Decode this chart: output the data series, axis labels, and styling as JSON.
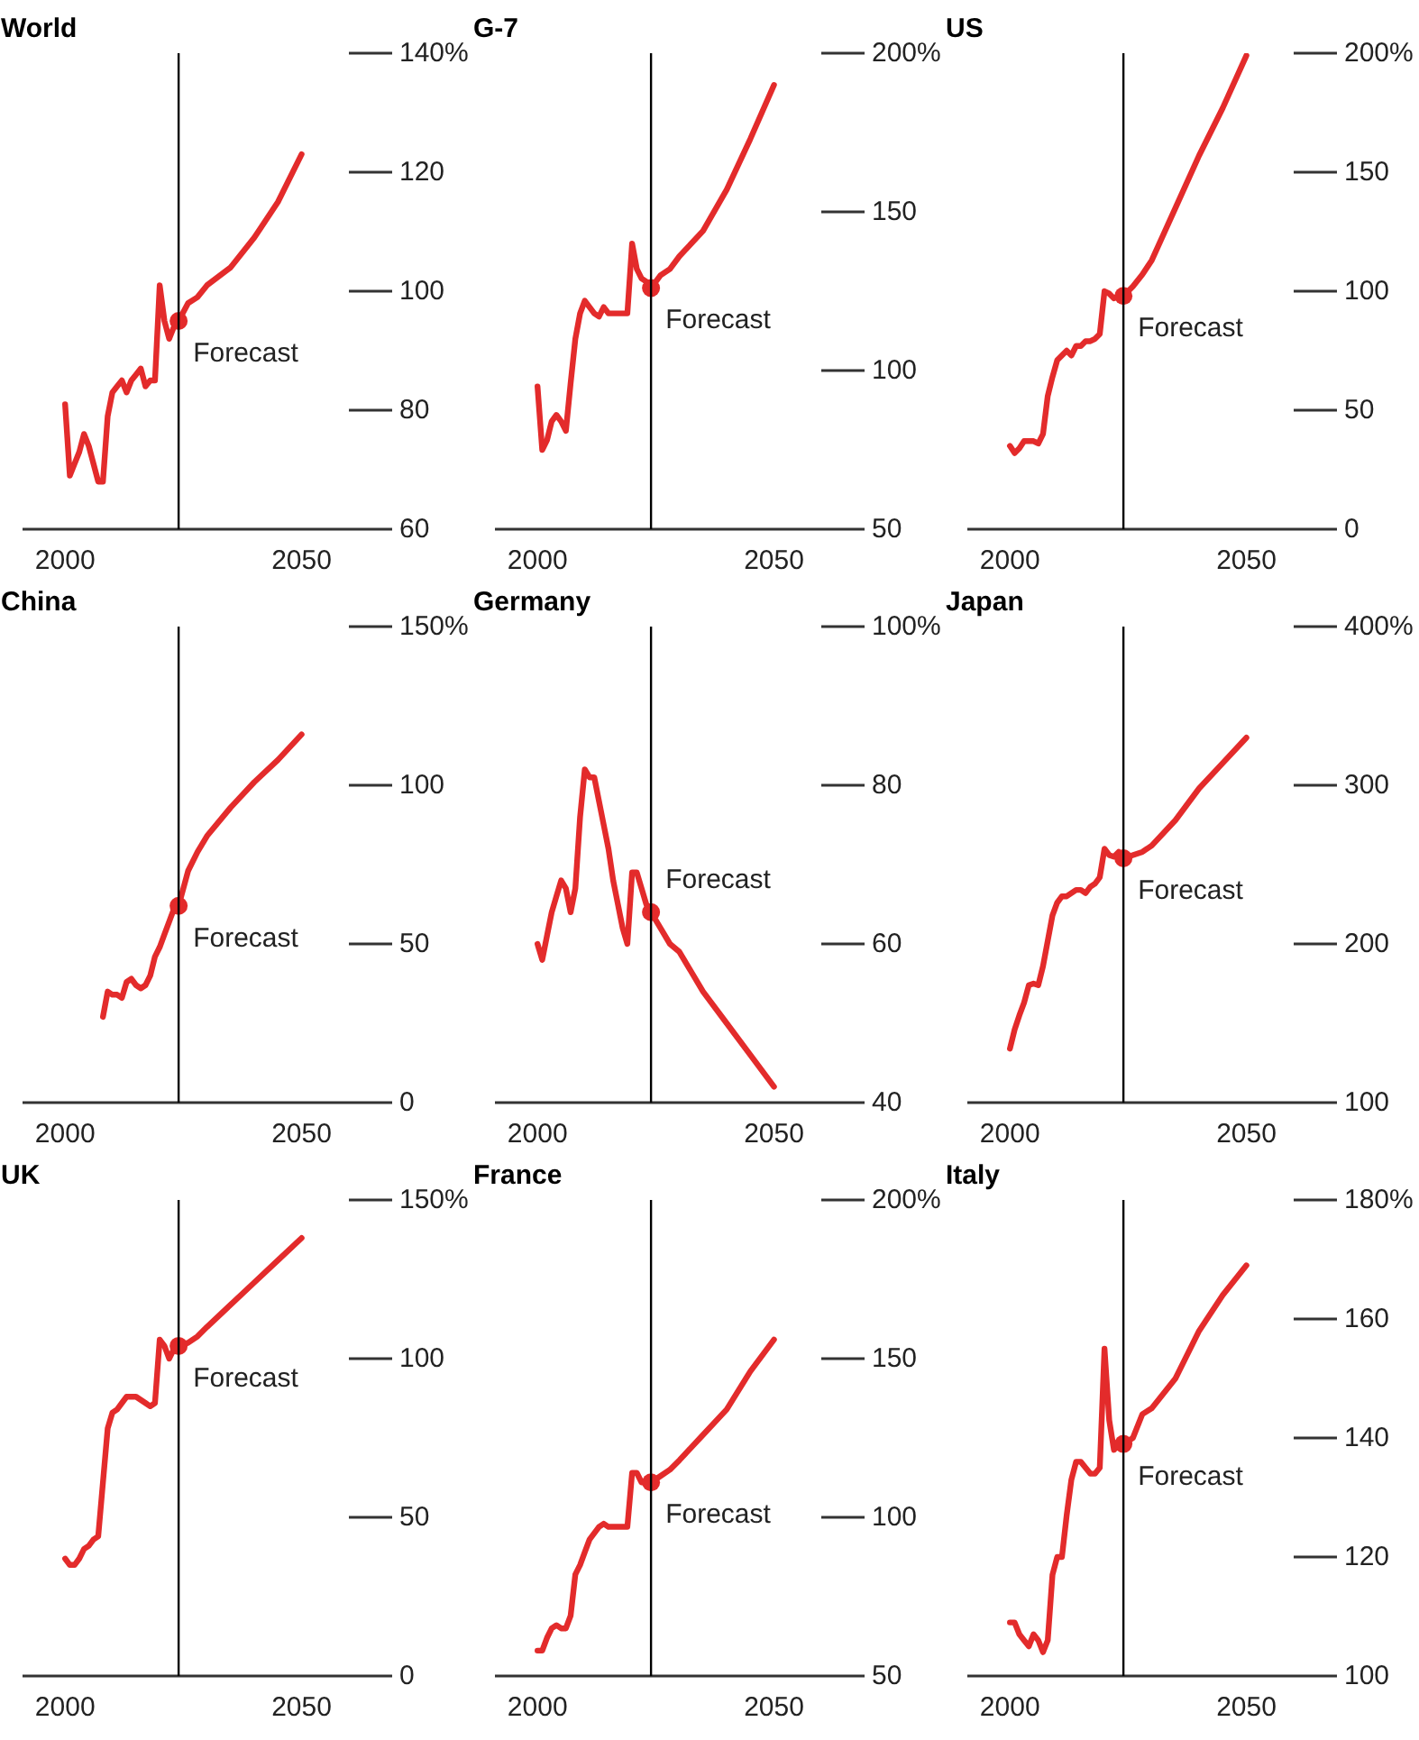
{
  "chart_data": [
    {
      "type": "line",
      "title": "World",
      "xlim": [
        1991,
        2060
      ],
      "xticks": [
        2000,
        2050
      ],
      "ylim": [
        60,
        140
      ],
      "yticks": [
        60,
        80,
        100,
        120,
        {
          "value": 140,
          "label": "140%"
        }
      ],
      "series": [
        {
          "color": "#e32b2b",
          "x": [
            2000,
            2001,
            2002,
            2003,
            2004,
            2005,
            2006,
            2007,
            2008,
            2009,
            2010,
            2011,
            2012,
            2013,
            2014,
            2015,
            2016,
            2017,
            2018,
            2019,
            2020,
            2021,
            2022,
            2023,
            2024,
            2026,
            2028,
            2030,
            2035,
            2040,
            2045,
            2050
          ],
          "values": [
            81,
            69,
            71,
            73,
            76,
            74,
            71,
            68,
            68,
            79,
            83,
            84,
            85,
            83,
            85,
            86,
            87,
            84,
            85,
            85,
            101,
            95,
            92,
            94,
            95,
            98,
            99,
            101,
            104,
            109,
            115,
            123
          ]
        },
        {
          "type": "scatter",
          "color": "#e32b2b",
          "x": [
            2024
          ],
          "values": [
            95
          ]
        }
      ],
      "ref_lines": [
        {
          "axis": "x",
          "value": 2024,
          "color": "#000000",
          "label": "Forecast"
        }
      ]
    },
    {
      "type": "line",
      "title": "G-7",
      "xlim": [
        1991,
        2060
      ],
      "xticks": [
        2000,
        2050
      ],
      "ylim": [
        50,
        200
      ],
      "yticks": [
        50,
        100,
        150,
        {
          "value": 200,
          "label": "200%"
        }
      ],
      "series": [
        {
          "color": "#e32b2b",
          "x": [
            2000,
            2001,
            2002,
            2003,
            2004,
            2005,
            2006,
            2007,
            2008,
            2009,
            2010,
            2011,
            2012,
            2013,
            2014,
            2015,
            2016,
            2017,
            2018,
            2019,
            2020,
            2021,
            2022,
            2023,
            2024,
            2026,
            2028,
            2030,
            2035,
            2040,
            2045,
            2050
          ],
          "values": [
            95,
            75,
            78,
            84,
            86,
            84,
            81,
            96,
            110,
            118,
            122,
            120,
            118,
            117,
            120,
            118,
            118,
            118,
            118,
            118,
            140,
            132,
            129,
            128,
            126,
            130,
            132,
            136,
            144,
            157,
            173,
            190
          ]
        },
        {
          "type": "scatter",
          "color": "#e32b2b",
          "x": [
            2024
          ],
          "values": [
            126
          ]
        }
      ],
      "ref_lines": [
        {
          "axis": "x",
          "value": 2024,
          "color": "#000000",
          "label": "Forecast"
        }
      ]
    },
    {
      "type": "line",
      "title": "US",
      "xlim": [
        1991,
        2060
      ],
      "xticks": [
        2000,
        2050
      ],
      "ylim": [
        0,
        200
      ],
      "yticks": [
        0,
        50,
        100,
        150,
        {
          "value": 200,
          "label": "200%"
        }
      ],
      "series": [
        {
          "color": "#e32b2b",
          "x": [
            2000,
            2001,
            2002,
            2003,
            2004,
            2005,
            2006,
            2007,
            2008,
            2009,
            2010,
            2011,
            2012,
            2013,
            2014,
            2015,
            2016,
            2017,
            2018,
            2019,
            2020,
            2021,
            2022,
            2023,
            2024,
            2026,
            2028,
            2030,
            2035,
            2040,
            2045,
            2050
          ],
          "values": [
            35,
            32,
            34,
            37,
            37,
            37,
            36,
            40,
            56,
            64,
            71,
            73,
            75,
            73,
            77,
            77,
            79,
            79,
            80,
            82,
            100,
            99,
            97,
            98,
            98,
            102,
            107,
            113,
            135,
            157,
            177,
            199
          ]
        },
        {
          "type": "scatter",
          "color": "#e32b2b",
          "x": [
            2024
          ],
          "values": [
            98
          ]
        }
      ],
      "ref_lines": [
        {
          "axis": "x",
          "value": 2024,
          "color": "#000000",
          "label": "Forecast"
        }
      ]
    },
    {
      "type": "line",
      "title": "China",
      "xlim": [
        1991,
        2060
      ],
      "xticks": [
        2000,
        2050
      ],
      "ylim": [
        0,
        150
      ],
      "yticks": [
        0,
        50,
        100,
        {
          "value": 150,
          "label": "150%"
        }
      ],
      "series": [
        {
          "color": "#e32b2b",
          "x": [
            2008,
            2009,
            2010,
            2011,
            2012,
            2013,
            2014,
            2015,
            2016,
            2017,
            2018,
            2019,
            2020,
            2021,
            2022,
            2023,
            2024,
            2026,
            2028,
            2030,
            2035,
            2040,
            2045,
            2050
          ],
          "values": [
            27,
            35,
            34,
            34,
            33,
            38,
            39,
            37,
            36,
            37,
            40,
            46,
            49,
            53,
            57,
            61,
            62,
            73,
            79,
            84,
            93,
            101,
            108,
            116
          ]
        },
        {
          "type": "scatter",
          "color": "#e32b2b",
          "x": [
            2024
          ],
          "values": [
            62
          ]
        }
      ],
      "ref_lines": [
        {
          "axis": "x",
          "value": 2024,
          "color": "#000000",
          "label": "Forecast"
        }
      ]
    },
    {
      "type": "line",
      "title": "Germany",
      "xlim": [
        1991,
        2060
      ],
      "xticks": [
        2000,
        2050
      ],
      "ylim": [
        40,
        100
      ],
      "yticks": [
        40,
        60,
        80,
        {
          "value": 100,
          "label": "100%"
        }
      ],
      "series": [
        {
          "color": "#e32b2b",
          "x": [
            2000,
            2001,
            2002,
            2003,
            2004,
            2005,
            2006,
            2007,
            2008,
            2009,
            2010,
            2011,
            2012,
            2013,
            2014,
            2015,
            2016,
            2017,
            2018,
            2019,
            2020,
            2021,
            2022,
            2023,
            2024,
            2026,
            2028,
            2030,
            2035,
            2040,
            2045,
            2050
          ],
          "values": [
            60,
            58,
            61,
            64,
            66,
            68,
            67,
            64,
            67,
            76,
            82,
            81,
            81,
            78,
            75,
            72,
            68,
            65,
            62,
            60,
            69,
            69,
            67,
            65,
            64,
            62,
            60,
            59,
            54,
            50,
            46,
            42
          ]
        },
        {
          "type": "scatter",
          "color": "#e32b2b",
          "x": [
            2024
          ],
          "values": [
            64
          ]
        }
      ],
      "ref_lines": [
        {
          "axis": "x",
          "value": 2024,
          "color": "#000000",
          "label": "Forecast"
        }
      ]
    },
    {
      "type": "line",
      "title": "Japan",
      "xlim": [
        1991,
        2060
      ],
      "xticks": [
        2000,
        2050
      ],
      "ylim": [
        100,
        400
      ],
      "yticks": [
        100,
        200,
        300,
        {
          "value": 400,
          "label": "400%"
        }
      ],
      "series": [
        {
          "color": "#e32b2b",
          "x": [
            2000,
            2001,
            2002,
            2003,
            2004,
            2005,
            2006,
            2007,
            2008,
            2009,
            2010,
            2011,
            2012,
            2013,
            2014,
            2015,
            2016,
            2017,
            2018,
            2019,
            2020,
            2021,
            2022,
            2023,
            2024,
            2026,
            2028,
            2030,
            2035,
            2040,
            2045,
            2050
          ],
          "values": [
            134,
            146,
            155,
            163,
            174,
            175,
            174,
            186,
            202,
            218,
            226,
            230,
            230,
            232,
            234,
            234,
            232,
            236,
            238,
            242,
            260,
            256,
            255,
            258,
            254,
            256,
            258,
            262,
            278,
            298,
            314,
            330
          ]
        },
        {
          "type": "scatter",
          "color": "#e32b2b",
          "x": [
            2024
          ],
          "values": [
            254
          ]
        }
      ],
      "ref_lines": [
        {
          "axis": "x",
          "value": 2024,
          "color": "#000000",
          "label": "Forecast"
        }
      ]
    },
    {
      "type": "line",
      "title": "UK",
      "xlim": [
        1991,
        2060
      ],
      "xticks": [
        2000,
        2050
      ],
      "ylim": [
        0,
        150
      ],
      "yticks": [
        0,
        50,
        100,
        {
          "value": 150,
          "label": "150%"
        }
      ],
      "series": [
        {
          "color": "#e32b2b",
          "x": [
            2000,
            2001,
            2002,
            2003,
            2004,
            2005,
            2006,
            2007,
            2008,
            2009,
            2010,
            2011,
            2012,
            2013,
            2014,
            2015,
            2016,
            2017,
            2018,
            2019,
            2020,
            2021,
            2022,
            2023,
            2024,
            2026,
            2028,
            2030,
            2035,
            2040,
            2045,
            2050
          ],
          "values": [
            37,
            35,
            35,
            37,
            40,
            41,
            43,
            44,
            61,
            78,
            83,
            84,
            86,
            88,
            88,
            88,
            87,
            86,
            85,
            86,
            106,
            104,
            100,
            103,
            104,
            105,
            107,
            110,
            117,
            124,
            131,
            138
          ]
        },
        {
          "type": "scatter",
          "color": "#e32b2b",
          "x": [
            2024
          ],
          "values": [
            104
          ]
        }
      ],
      "ref_lines": [
        {
          "axis": "x",
          "value": 2024,
          "color": "#000000",
          "label": "Forecast"
        }
      ]
    },
    {
      "type": "line",
      "title": "France",
      "xlim": [
        1991,
        2060
      ],
      "xticks": [
        2000,
        2050
      ],
      "ylim": [
        50,
        200
      ],
      "yticks": [
        50,
        100,
        150,
        {
          "value": 200,
          "label": "200%"
        }
      ],
      "series": [
        {
          "color": "#e32b2b",
          "x": [
            2000,
            2001,
            2002,
            2003,
            2004,
            2005,
            2006,
            2007,
            2008,
            2009,
            2010,
            2011,
            2012,
            2013,
            2014,
            2015,
            2016,
            2017,
            2018,
            2019,
            2020,
            2021,
            2022,
            2023,
            2024,
            2026,
            2028,
            2030,
            2035,
            2040,
            2045,
            2050
          ],
          "values": [
            58,
            58,
            62,
            65,
            66,
            65,
            65,
            69,
            82,
            85,
            89,
            93,
            95,
            97,
            98,
            97,
            97,
            97,
            97,
            97,
            114,
            114,
            111,
            111,
            111,
            113,
            115,
            118,
            126,
            134,
            146,
            156
          ]
        },
        {
          "type": "scatter",
          "color": "#e32b2b",
          "x": [
            2024
          ],
          "values": [
            111
          ]
        }
      ],
      "ref_lines": [
        {
          "axis": "x",
          "value": 2024,
          "color": "#000000",
          "label": "Forecast"
        }
      ]
    },
    {
      "type": "line",
      "title": "Italy",
      "xlim": [
        1991,
        2060
      ],
      "xticks": [
        2000,
        2050
      ],
      "ylim": [
        100,
        180
      ],
      "yticks": [
        100,
        120,
        140,
        160,
        {
          "value": 180,
          "label": "180%"
        }
      ],
      "series": [
        {
          "color": "#e32b2b",
          "x": [
            2000,
            2001,
            2002,
            2003,
            2004,
            2005,
            2006,
            2007,
            2008,
            2009,
            2010,
            2011,
            2012,
            2013,
            2014,
            2015,
            2016,
            2017,
            2018,
            2019,
            2020,
            2021,
            2022,
            2023,
            2024,
            2026,
            2028,
            2030,
            2035,
            2040,
            2045,
            2050
          ],
          "values": [
            109,
            109,
            107,
            106,
            105,
            107,
            106,
            104,
            106,
            117,
            120,
            120,
            127,
            133,
            136,
            136,
            135,
            134,
            134,
            135,
            155,
            143,
            138,
            139,
            139,
            140,
            144,
            145,
            150,
            158,
            164,
            169
          ]
        },
        {
          "type": "scatter",
          "color": "#e32b2b",
          "x": [
            2024
          ],
          "values": [
            139
          ]
        }
      ],
      "ref_lines": [
        {
          "axis": "x",
          "value": 2024,
          "color": "#000000",
          "label": "Forecast"
        }
      ]
    }
  ]
}
